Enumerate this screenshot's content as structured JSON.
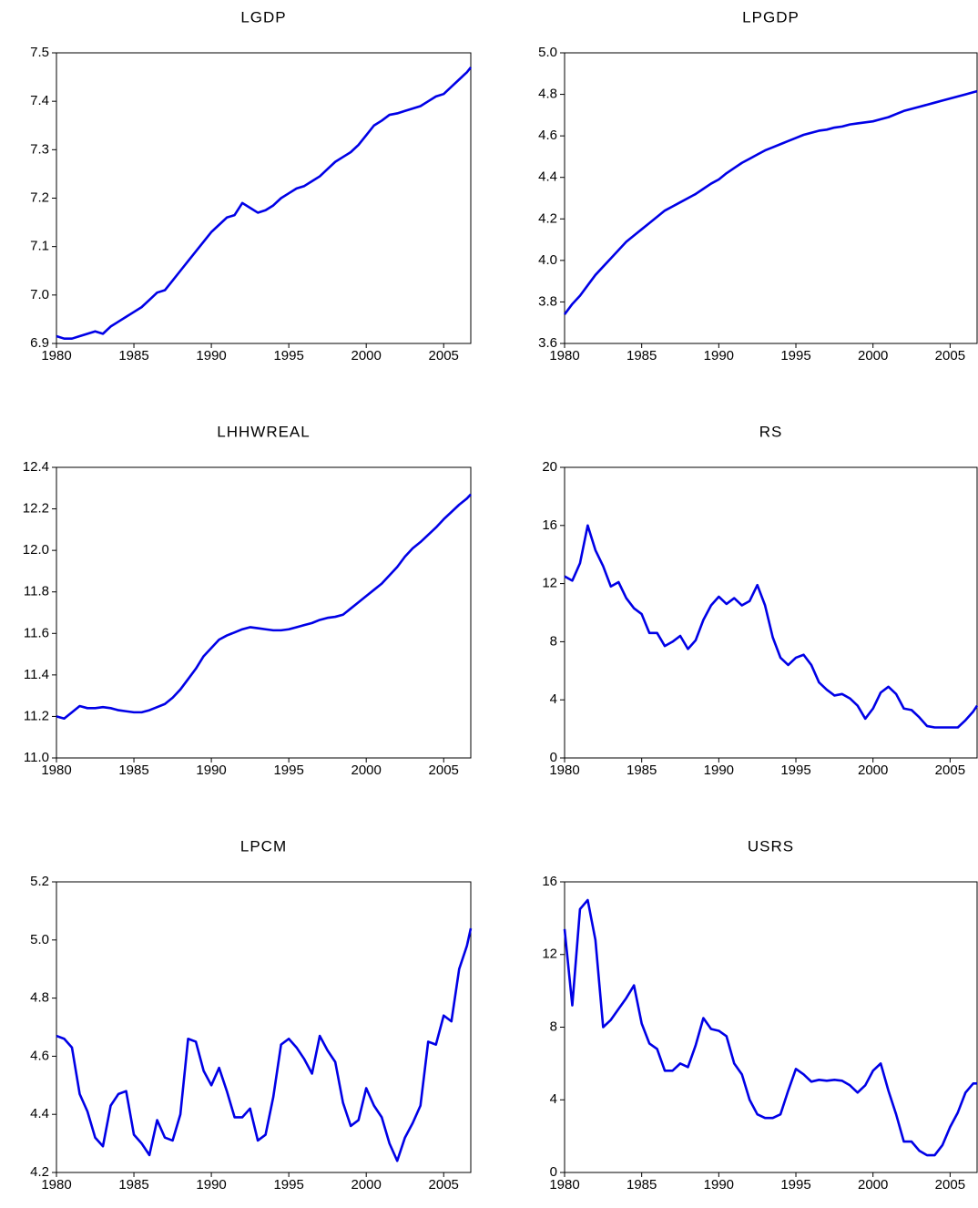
{
  "chart_data": [
    {
      "type": "line",
      "title": "LGDP",
      "color": "#0000e6",
      "x": [
        1980,
        1980.5,
        1981,
        1981.5,
        1982,
        1982.5,
        1983,
        1983.5,
        1984,
        1984.5,
        1985,
        1985.5,
        1986,
        1986.5,
        1987,
        1987.5,
        1988,
        1988.5,
        1989,
        1989.5,
        1990,
        1990.5,
        1991,
        1991.5,
        1992,
        1992.5,
        1993,
        1993.5,
        1994,
        1994.5,
        1995,
        1995.5,
        1996,
        1996.5,
        1997,
        1997.5,
        1998,
        1998.5,
        1999,
        1999.5,
        2000,
        2000.5,
        2001,
        2001.5,
        2002,
        2002.5,
        2003,
        2003.5,
        2004,
        2004.5,
        2005,
        2005.5,
        2006,
        2006.5,
        2006.75
      ],
      "values": [
        6.915,
        6.91,
        6.91,
        6.915,
        6.92,
        6.925,
        6.92,
        6.935,
        6.945,
        6.955,
        6.965,
        6.975,
        6.99,
        7.005,
        7.01,
        7.03,
        7.05,
        7.07,
        7.09,
        7.11,
        7.13,
        7.145,
        7.16,
        7.165,
        7.19,
        7.18,
        7.17,
        7.175,
        7.185,
        7.2,
        7.21,
        7.22,
        7.225,
        7.235,
        7.245,
        7.26,
        7.275,
        7.285,
        7.295,
        7.31,
        7.33,
        7.35,
        7.36,
        7.372,
        7.375,
        7.38,
        7.385,
        7.39,
        7.4,
        7.41,
        7.415,
        7.43,
        7.445,
        7.46,
        7.47
      ],
      "xlim": [
        1980,
        2006.75
      ],
      "xticks": [
        1980,
        1985,
        1990,
        1995,
        2000,
        2005
      ],
      "ylim": [
        6.9,
        7.5
      ],
      "yticks": [
        6.9,
        {
          "value": 7,
          "label": "7.0"
        },
        7.1,
        7.2,
        7.3,
        7.4,
        7.5
      ]
    },
    {
      "type": "line",
      "title": "LPGDP",
      "color": "#0000e6",
      "x": [
        1980,
        1980.5,
        1981,
        1981.5,
        1982,
        1982.5,
        1983,
        1983.5,
        1984,
        1984.5,
        1985,
        1985.5,
        1986,
        1986.5,
        1987,
        1987.5,
        1988,
        1988.5,
        1989,
        1989.5,
        1990,
        1990.5,
        1991,
        1991.5,
        1992,
        1992.5,
        1993,
        1993.5,
        1994,
        1994.5,
        1995,
        1995.5,
        1996,
        1996.5,
        1997,
        1997.5,
        1998,
        1998.5,
        1999,
        1999.5,
        2000,
        2000.5,
        2001,
        2001.5,
        2002,
        2002.5,
        2003,
        2003.5,
        2004,
        2004.5,
        2005,
        2005.5,
        2006,
        2006.5,
        2006.75
      ],
      "values": [
        3.74,
        3.79,
        3.83,
        3.88,
        3.93,
        3.97,
        4.01,
        4.05,
        4.09,
        4.12,
        4.15,
        4.18,
        4.21,
        4.24,
        4.26,
        4.28,
        4.3,
        4.32,
        4.345,
        4.37,
        4.39,
        4.42,
        4.445,
        4.47,
        4.49,
        4.51,
        4.53,
        4.545,
        4.56,
        4.575,
        4.59,
        4.605,
        4.615,
        4.625,
        4.63,
        4.64,
        4.645,
        4.655,
        4.66,
        4.665,
        4.67,
        4.68,
        4.69,
        4.705,
        4.72,
        4.73,
        4.74,
        4.75,
        4.76,
        4.77,
        4.78,
        4.79,
        4.8,
        4.81,
        4.815
      ],
      "xlim": [
        1980,
        2006.75
      ],
      "xticks": [
        1980,
        1985,
        1990,
        1995,
        2000,
        2005
      ],
      "ylim": [
        3.6,
        5.0
      ],
      "yticks": [
        3.6,
        3.8,
        {
          "value": 4,
          "label": "4.0"
        },
        4.2,
        4.4,
        4.6,
        4.8,
        {
          "value": 5,
          "label": "5.0"
        }
      ]
    },
    {
      "type": "line",
      "title": "LHHWREAL",
      "color": "#0000e6",
      "x": [
        1980,
        1980.5,
        1981,
        1981.5,
        1982,
        1982.5,
        1983,
        1983.5,
        1984,
        1984.5,
        1985,
        1985.5,
        1986,
        1986.5,
        1987,
        1987.5,
        1988,
        1988.5,
        1989,
        1989.5,
        1990,
        1990.5,
        1991,
        1991.5,
        1992,
        1992.5,
        1993,
        1993.5,
        1994,
        1994.5,
        1995,
        1995.5,
        1996,
        1996.5,
        1997,
        1997.5,
        1998,
        1998.5,
        1999,
        1999.5,
        2000,
        2000.5,
        2001,
        2001.5,
        2002,
        2002.5,
        2003,
        2003.5,
        2004,
        2004.5,
        2005,
        2005.5,
        2006,
        2006.5,
        2006.75
      ],
      "values": [
        11.2,
        11.19,
        11.22,
        11.25,
        11.24,
        11.24,
        11.245,
        11.24,
        11.23,
        11.225,
        11.22,
        11.22,
        11.23,
        11.245,
        11.26,
        11.29,
        11.33,
        11.38,
        11.43,
        11.49,
        11.53,
        11.57,
        11.59,
        11.605,
        11.62,
        11.63,
        11.625,
        11.62,
        11.615,
        11.615,
        11.62,
        11.63,
        11.64,
        11.65,
        11.665,
        11.675,
        11.68,
        11.69,
        11.72,
        11.75,
        11.78,
        11.81,
        11.84,
        11.88,
        11.92,
        11.97,
        12.01,
        12.04,
        12.075,
        12.11,
        12.15,
        12.185,
        12.22,
        12.25,
        12.27
      ],
      "xlim": [
        1980,
        2006.75
      ],
      "xticks": [
        1980,
        1985,
        1990,
        1995,
        2000,
        2005
      ],
      "ylim": [
        11.0,
        12.4
      ],
      "yticks": [
        {
          "value": 11,
          "label": "11.0"
        },
        11.2,
        11.4,
        11.6,
        11.8,
        {
          "value": 12,
          "label": "12.0"
        },
        12.2,
        12.4
      ]
    },
    {
      "type": "line",
      "title": "RS",
      "color": "#0000e6",
      "x": [
        1980,
        1980.5,
        1981,
        1981.5,
        1982,
        1982.5,
        1983,
        1983.5,
        1984,
        1984.5,
        1985,
        1985.5,
        1986,
        1986.5,
        1987,
        1987.5,
        1988,
        1988.5,
        1989,
        1989.5,
        1990,
        1990.5,
        1991,
        1991.5,
        1992,
        1992.5,
        1993,
        1993.5,
        1994,
        1994.5,
        1995,
        1995.5,
        1996,
        1996.5,
        1997,
        1997.5,
        1998,
        1998.5,
        1999,
        1999.5,
        2000,
        2000.5,
        2001,
        2001.5,
        2002,
        2002.5,
        2003,
        2003.5,
        2004,
        2004.5,
        2005,
        2005.5,
        2006,
        2006.5,
        2006.75
      ],
      "values": [
        12.5,
        12.2,
        13.4,
        16.0,
        14.3,
        13.2,
        11.8,
        12.1,
        11.0,
        10.3,
        9.9,
        8.6,
        8.6,
        7.7,
        8.0,
        8.4,
        7.5,
        8.1,
        9.5,
        10.5,
        11.1,
        10.6,
        11.0,
        10.5,
        10.8,
        11.9,
        10.5,
        8.3,
        6.9,
        6.4,
        6.9,
        7.1,
        6.4,
        5.2,
        4.7,
        4.3,
        4.4,
        4.1,
        3.6,
        2.7,
        3.4,
        4.5,
        4.9,
        4.4,
        3.4,
        3.3,
        2.8,
        2.2,
        2.1,
        2.1,
        2.1,
        2.1,
        2.6,
        3.2,
        3.6
      ],
      "xlim": [
        1980,
        2006.75
      ],
      "xticks": [
        1980,
        1985,
        1990,
        1995,
        2000,
        2005
      ],
      "ylim": [
        0,
        20
      ],
      "yticks": [
        0,
        4,
        8,
        12,
        16,
        20
      ]
    },
    {
      "type": "line",
      "title": "LPCM",
      "color": "#0000e6",
      "x": [
        1980,
        1980.5,
        1981,
        1981.5,
        1982,
        1982.5,
        1983,
        1983.5,
        1984,
        1984.5,
        1985,
        1985.5,
        1986,
        1986.5,
        1987,
        1987.5,
        1988,
        1988.5,
        1989,
        1989.5,
        1990,
        1990.5,
        1991,
        1991.5,
        1992,
        1992.5,
        1993,
        1993.5,
        1994,
        1994.5,
        1995,
        1995.5,
        1996,
        1996.5,
        1997,
        1997.5,
        1998,
        1998.5,
        1999,
        1999.5,
        2000,
        2000.5,
        2001,
        2001.5,
        2002,
        2002.5,
        2003,
        2003.5,
        2004,
        2004.5,
        2005,
        2005.5,
        2006,
        2006.5,
        2006.75
      ],
      "values": [
        4.67,
        4.66,
        4.63,
        4.47,
        4.41,
        4.32,
        4.29,
        4.43,
        4.47,
        4.48,
        4.33,
        4.3,
        4.26,
        4.38,
        4.32,
        4.31,
        4.4,
        4.66,
        4.65,
        4.55,
        4.5,
        4.56,
        4.48,
        4.39,
        4.39,
        4.42,
        4.31,
        4.33,
        4.46,
        4.64,
        4.66,
        4.63,
        4.59,
        4.54,
        4.67,
        4.62,
        4.58,
        4.44,
        4.36,
        4.38,
        4.49,
        4.43,
        4.39,
        4.3,
        4.24,
        4.32,
        4.37,
        4.43,
        4.65,
        4.64,
        4.74,
        4.72,
        4.9,
        4.98,
        5.04
      ],
      "xlim": [
        1980,
        2006.75
      ],
      "xticks": [
        1980,
        1985,
        1990,
        1995,
        2000,
        2005
      ],
      "ylim": [
        4.2,
        5.2
      ],
      "yticks": [
        4.2,
        4.4,
        4.6,
        4.8,
        {
          "value": 5,
          "label": "5.0"
        },
        5.2
      ]
    },
    {
      "type": "line",
      "title": "USRS",
      "color": "#0000e6",
      "x": [
        1980,
        1980.5,
        1981,
        1981.5,
        1982,
        1982.5,
        1983,
        1983.5,
        1984,
        1984.5,
        1985,
        1985.5,
        1986,
        1986.5,
        1987,
        1987.5,
        1988,
        1988.5,
        1989,
        1989.5,
        1990,
        1990.5,
        1991,
        1991.5,
        1992,
        1992.5,
        1993,
        1993.5,
        1994,
        1994.5,
        1995,
        1995.5,
        1996,
        1996.5,
        1997,
        1997.5,
        1998,
        1998.5,
        1999,
        1999.5,
        2000,
        2000.5,
        2001,
        2001.5,
        2002,
        2002.5,
        2003,
        2003.5,
        2004,
        2004.5,
        2005,
        2005.5,
        2006,
        2006.5,
        2006.75
      ],
      "values": [
        13.4,
        9.2,
        14.5,
        15.0,
        12.8,
        8.0,
        8.4,
        9.0,
        9.6,
        10.3,
        8.2,
        7.1,
        6.8,
        5.6,
        5.6,
        6.0,
        5.8,
        7.0,
        8.5,
        7.9,
        7.8,
        7.5,
        6.0,
        5.4,
        4.0,
        3.2,
        3.0,
        3.0,
        3.2,
        4.5,
        5.7,
        5.4,
        5.0,
        5.1,
        5.05,
        5.1,
        5.05,
        4.8,
        4.4,
        4.8,
        5.6,
        6.0,
        4.5,
        3.2,
        1.7,
        1.7,
        1.2,
        0.95,
        0.95,
        1.5,
        2.5,
        3.3,
        4.4,
        4.9,
        4.9
      ],
      "xlim": [
        1980,
        2006.75
      ],
      "xticks": [
        1980,
        1985,
        1990,
        1995,
        2000,
        2005
      ],
      "ylim": [
        0,
        16
      ],
      "yticks": [
        0,
        4,
        8,
        12,
        16
      ]
    }
  ]
}
